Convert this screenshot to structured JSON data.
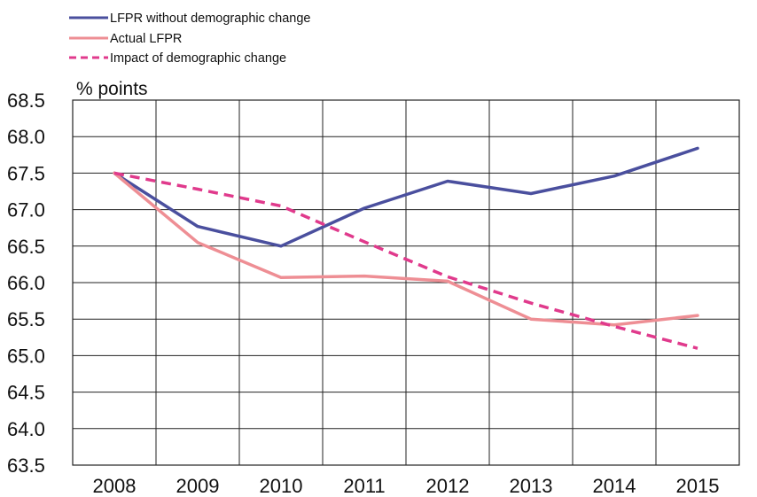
{
  "chart_data": {
    "type": "line",
    "title": "",
    "ylabel": "% points",
    "xlabel": "",
    "categories": [
      "2008",
      "2009",
      "2010",
      "2011",
      "2012",
      "2013",
      "2014",
      "2015"
    ],
    "ylim": [
      63.5,
      68.5
    ],
    "yticks": [
      "68.5",
      "68.0",
      "67.5",
      "67.0",
      "66.5",
      "66.0",
      "65.5",
      "65.0",
      "64.5",
      "64.0",
      "63.5"
    ],
    "grid": true,
    "legend_position": "top-left",
    "series": [
      {
        "name": "LFPR without demographic change",
        "color": "#4a4f9e",
        "dashed": false,
        "values": [
          67.5,
          66.77,
          66.5,
          67.02,
          67.39,
          67.22,
          67.46,
          67.84
        ]
      },
      {
        "name": "Actual LFPR",
        "color": "#ee8e94",
        "dashed": false,
        "values": [
          67.5,
          66.55,
          66.07,
          66.09,
          66.02,
          65.5,
          65.42,
          65.55
        ]
      },
      {
        "name": "Impact of demographic change",
        "color": "#e03a8c",
        "dashed": true,
        "values": [
          67.5,
          67.28,
          67.05,
          66.56,
          66.08,
          65.72,
          65.4,
          65.1
        ]
      }
    ]
  }
}
